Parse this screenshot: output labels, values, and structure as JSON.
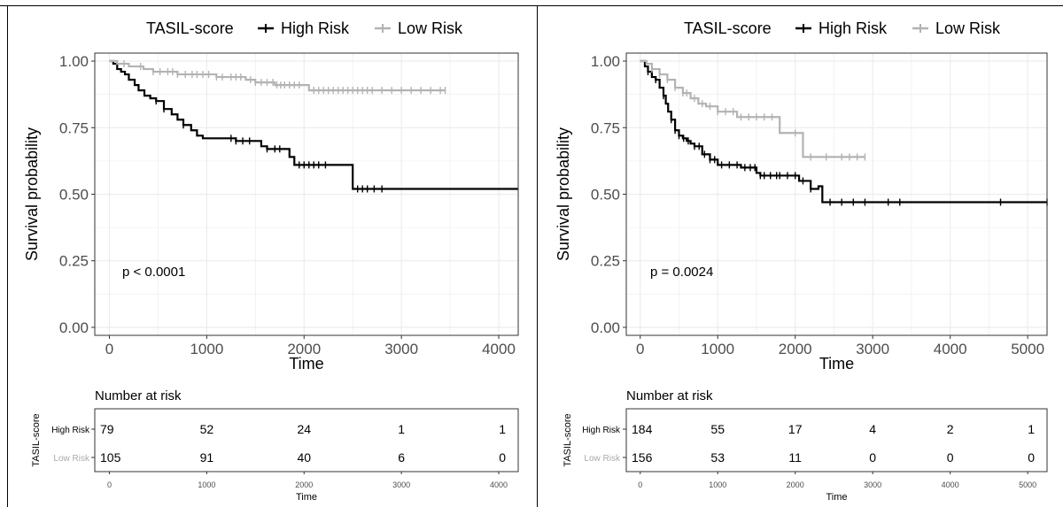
{
  "colors": {
    "high": "#000000",
    "low": "#b3b3b3",
    "grid": "#ebebeb",
    "censor_high": "#c98a2a"
  },
  "chart_data": [
    {
      "type": "line",
      "chart_kind": "kaplan-meier",
      "legend": {
        "title": "TASIL-score",
        "position": "top"
      },
      "xlabel": "Time",
      "ylabel": "Survival probability",
      "xlim": [
        -150,
        4200
      ],
      "ylim": [
        -0.03,
        1.03
      ],
      "x_ticks": [
        0,
        1000,
        2000,
        3000,
        4000
      ],
      "y_ticks": [
        0.0,
        0.25,
        0.5,
        0.75,
        1.0
      ],
      "y_tick_labels": [
        "0.00",
        "0.25",
        "0.50",
        "0.75",
        "1.00"
      ],
      "grid": true,
      "pvalue": "p < 0.0001",
      "series": [
        {
          "name": "High Risk",
          "color": "#000000",
          "x": [
            0,
            40,
            80,
            120,
            160,
            200,
            260,
            300,
            360,
            420,
            480,
            560,
            640,
            700,
            760,
            840,
            900,
            960,
            1100,
            1300,
            1500,
            1560,
            1620,
            1700,
            1850,
            1900,
            1950,
            2100,
            2300,
            2500,
            2700,
            2800,
            4200
          ],
          "y": [
            1.0,
            0.99,
            0.97,
            0.96,
            0.95,
            0.93,
            0.91,
            0.89,
            0.87,
            0.86,
            0.85,
            0.82,
            0.8,
            0.78,
            0.76,
            0.74,
            0.72,
            0.71,
            0.71,
            0.7,
            0.7,
            0.68,
            0.67,
            0.67,
            0.64,
            0.61,
            0.61,
            0.61,
            0.61,
            0.52,
            0.52,
            0.52,
            0.52
          ],
          "censor_x": [
            480,
            560,
            760,
            1250,
            1300,
            1370,
            1440,
            1620,
            1700,
            1750,
            1950,
            2000,
            2050,
            2100,
            2150,
            2220,
            2550,
            2600,
            2650,
            2720,
            2800
          ]
        },
        {
          "name": "Low Risk",
          "color": "#b3b3b3",
          "x": [
            0,
            80,
            200,
            350,
            450,
            560,
            700,
            900,
            1100,
            1250,
            1400,
            1500,
            1600,
            1700,
            1800,
            2000,
            2050,
            2400,
            2600,
            3200,
            3450
          ],
          "y": [
            1.0,
            0.99,
            0.98,
            0.97,
            0.96,
            0.96,
            0.95,
            0.95,
            0.94,
            0.94,
            0.93,
            0.92,
            0.92,
            0.91,
            0.91,
            0.91,
            0.89,
            0.89,
            0.89,
            0.89,
            0.89
          ],
          "censor_x": [
            150,
            320,
            450,
            520,
            600,
            650,
            700,
            780,
            850,
            900,
            960,
            1020,
            1100,
            1160,
            1250,
            1300,
            1350,
            1450,
            1500,
            1560,
            1620,
            1680,
            1720,
            1760,
            1800,
            1850,
            1900,
            1950,
            2100,
            2150,
            2200,
            2250,
            2300,
            2350,
            2400,
            2450,
            2500,
            2550,
            2600,
            2650,
            2700,
            2800,
            2900,
            3000,
            3100,
            3200,
            3300,
            3400,
            3450
          ]
        }
      ],
      "risk_table": {
        "title": "Number at risk",
        "y_title": "TASIL-score",
        "x_title": "Time",
        "times": [
          0,
          1000,
          2000,
          3000,
          4000
        ],
        "rows": [
          {
            "group": "High Risk",
            "counts": [
              "79",
              "52",
              "24",
              "1",
              "1"
            ]
          },
          {
            "group": "Low Risk",
            "counts": [
              "105",
              "91",
              "40",
              "6",
              "0"
            ]
          }
        ]
      }
    },
    {
      "type": "line",
      "chart_kind": "kaplan-meier",
      "legend": {
        "title": "TASIL-score",
        "position": "top"
      },
      "xlabel": "Time",
      "ylabel": "Survival probability",
      "xlim": [
        -180,
        5250
      ],
      "ylim": [
        -0.03,
        1.03
      ],
      "x_ticks": [
        0,
        1000,
        2000,
        3000,
        4000,
        5000
      ],
      "y_ticks": [
        0.0,
        0.25,
        0.5,
        0.75,
        1.0
      ],
      "y_tick_labels": [
        "0.00",
        "0.25",
        "0.50",
        "0.75",
        "1.00"
      ],
      "grid": true,
      "pvalue": "p = 0.0024",
      "series": [
        {
          "name": "High Risk",
          "color": "#000000",
          "x": [
            0,
            60,
            100,
            150,
            200,
            250,
            300,
            330,
            360,
            400,
            450,
            500,
            550,
            600,
            650,
            700,
            800,
            900,
            1000,
            1100,
            1200,
            1300,
            1500,
            1550,
            1700,
            2000,
            2050,
            2200,
            2300,
            2350,
            2400,
            2600,
            3000,
            3300,
            4600,
            5250
          ],
          "y": [
            1.0,
            0.98,
            0.96,
            0.94,
            0.93,
            0.9,
            0.87,
            0.84,
            0.81,
            0.78,
            0.74,
            0.72,
            0.71,
            0.7,
            0.69,
            0.68,
            0.65,
            0.63,
            0.61,
            0.61,
            0.61,
            0.6,
            0.58,
            0.57,
            0.57,
            0.57,
            0.55,
            0.52,
            0.53,
            0.47,
            0.47,
            0.47,
            0.47,
            0.47,
            0.47,
            0.47
          ],
          "censor_x": [
            100,
            200,
            300,
            400,
            450,
            500,
            560,
            620,
            700,
            760,
            830,
            900,
            960,
            1050,
            1150,
            1250,
            1350,
            1420,
            1480,
            1550,
            1600,
            1680,
            1760,
            1800,
            1900,
            2000,
            2100,
            2200,
            2450,
            2600,
            2750,
            2900,
            3200,
            3350,
            4650,
            5250
          ]
        },
        {
          "name": "Low Risk",
          "color": "#b3b3b3",
          "x": [
            0,
            80,
            150,
            250,
            350,
            450,
            550,
            650,
            750,
            850,
            1000,
            1100,
            1250,
            1400,
            1500,
            1750,
            1800,
            2050,
            2100,
            2400,
            2700,
            2900
          ],
          "y": [
            1.0,
            0.99,
            0.97,
            0.95,
            0.93,
            0.9,
            0.88,
            0.86,
            0.84,
            0.83,
            0.81,
            0.81,
            0.79,
            0.79,
            0.79,
            0.79,
            0.73,
            0.73,
            0.64,
            0.64,
            0.64,
            0.64
          ],
          "censor_x": [
            150,
            250,
            350,
            450,
            550,
            600,
            700,
            800,
            900,
            1000,
            1100,
            1200,
            1300,
            1400,
            1500,
            1600,
            1700,
            2000,
            2200,
            2400,
            2600,
            2700,
            2800,
            2900
          ]
        }
      ],
      "risk_table": {
        "title": "Number at risk",
        "y_title": "TASIL-score",
        "x_title": "Time",
        "times": [
          0,
          1000,
          2000,
          3000,
          4000,
          5000
        ],
        "rows": [
          {
            "group": "High Risk",
            "counts": [
              "184",
              "55",
              "17",
              "4",
              "2",
              "1"
            ]
          },
          {
            "group": "Low Risk",
            "counts": [
              "156",
              "53",
              "11",
              "0",
              "0",
              "0"
            ]
          }
        ]
      }
    }
  ]
}
